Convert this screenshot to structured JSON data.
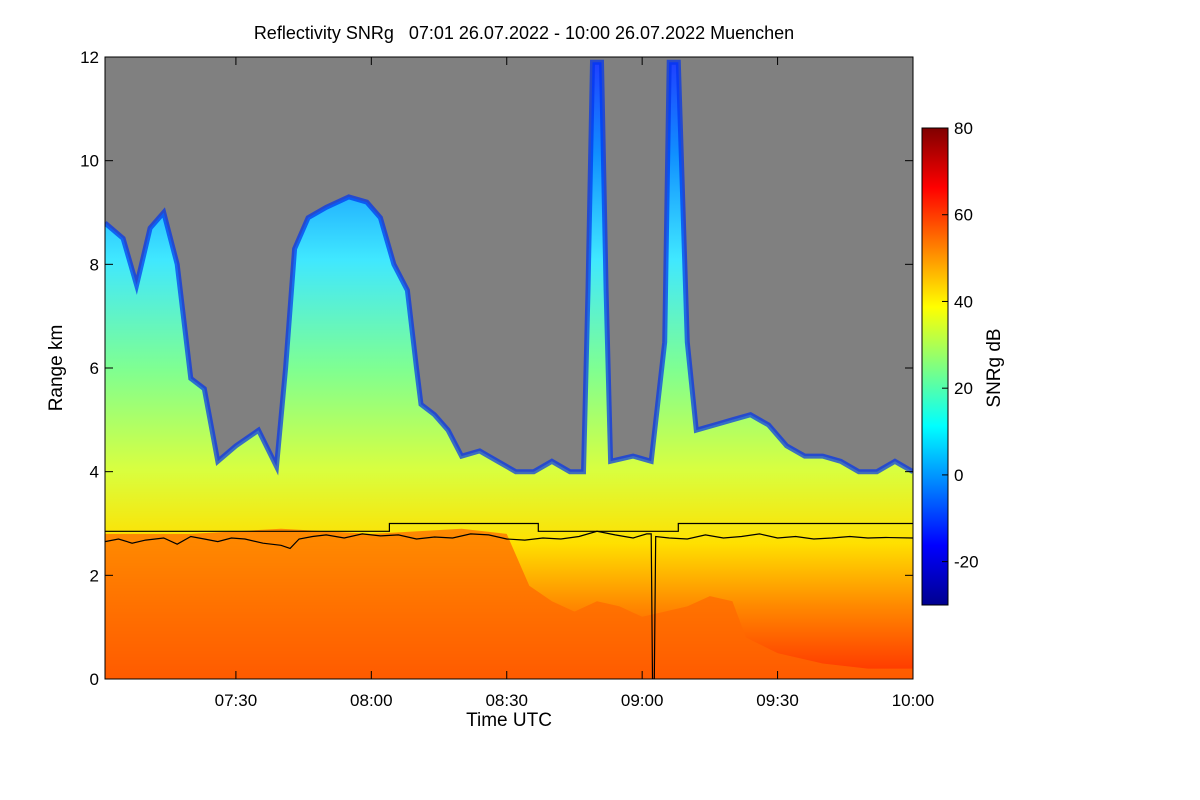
{
  "chart_data": {
    "type": "heatmap",
    "title": "Reflectivity SNRg   07:01 26.07.2022 - 10:00 26.07.2022 Muenchen",
    "xlabel": "Time UTC",
    "ylabel": "Range km",
    "colorbar_label": "SNRg dB",
    "x_range_minutes_utc": [
      421,
      600
    ],
    "y_range_km": [
      0,
      12
    ],
    "x_ticks": [
      {
        "minute": 450,
        "label": "07:30"
      },
      {
        "minute": 480,
        "label": "08:00"
      },
      {
        "minute": 510,
        "label": "08:30"
      },
      {
        "minute": 540,
        "label": "09:00"
      },
      {
        "minute": 570,
        "label": "09:30"
      },
      {
        "minute": 600,
        "label": "10:00"
      }
    ],
    "y_ticks": [
      {
        "value": 0,
        "label": "0"
      },
      {
        "value": 2,
        "label": "2"
      },
      {
        "value": 4,
        "label": "4"
      },
      {
        "value": 6,
        "label": "6"
      },
      {
        "value": 8,
        "label": "8"
      },
      {
        "value": 10,
        "label": "10"
      },
      {
        "value": 12,
        "label": "12"
      }
    ],
    "colorbar_range_db": [
      -30,
      80
    ],
    "colorbar_ticks": [
      {
        "value": -20,
        "label": "-20"
      },
      {
        "value": 0,
        "label": "0"
      },
      {
        "value": 20,
        "label": "20"
      },
      {
        "value": 40,
        "label": "40"
      },
      {
        "value": 60,
        "label": "60"
      },
      {
        "value": 80,
        "label": "80"
      }
    ],
    "no_signal_color": "#808080",
    "colormap": [
      "#00008f",
      "#0000ff",
      "#0080ff",
      "#00ffff",
      "#80ff80",
      "#ffff00",
      "#ff8000",
      "#ff0000",
      "#800000"
    ],
    "cloud_top_km": [
      [
        421,
        8.8
      ],
      [
        425,
        8.5
      ],
      [
        428,
        7.6
      ],
      [
        431,
        8.7
      ],
      [
        434,
        9.0
      ],
      [
        437,
        8.0
      ],
      [
        440,
        5.8
      ],
      [
        443,
        5.6
      ],
      [
        446,
        4.2
      ],
      [
        450,
        4.5
      ],
      [
        455,
        4.8
      ],
      [
        459,
        4.1
      ],
      [
        461,
        6.0
      ],
      [
        463,
        8.3
      ],
      [
        466,
        8.9
      ],
      [
        470,
        9.1
      ],
      [
        475,
        9.3
      ],
      [
        479,
        9.2
      ],
      [
        482,
        8.9
      ],
      [
        485,
        8.0
      ],
      [
        488,
        7.5
      ],
      [
        490,
        6.0
      ],
      [
        491,
        5.3
      ],
      [
        494,
        5.1
      ],
      [
        497,
        4.8
      ],
      [
        500,
        4.3
      ],
      [
        504,
        4.4
      ],
      [
        508,
        4.2
      ],
      [
        512,
        4.0
      ],
      [
        516,
        4.0
      ],
      [
        520,
        4.2
      ],
      [
        524,
        4.0
      ],
      [
        527,
        4.0
      ],
      [
        528,
        7.5
      ],
      [
        529,
        11.9
      ],
      [
        531,
        11.9
      ],
      [
        532,
        7.5
      ],
      [
        533,
        4.2
      ],
      [
        538,
        4.3
      ],
      [
        542,
        4.2
      ],
      [
        545,
        6.5
      ],
      [
        546,
        11.9
      ],
      [
        548,
        11.9
      ],
      [
        550,
        6.5
      ],
      [
        552,
        4.8
      ],
      [
        556,
        4.9
      ],
      [
        560,
        5.0
      ],
      [
        564,
        5.1
      ],
      [
        568,
        4.9
      ],
      [
        572,
        4.5
      ],
      [
        576,
        4.3
      ],
      [
        580,
        4.3
      ],
      [
        584,
        4.2
      ],
      [
        588,
        4.0
      ],
      [
        592,
        4.0
      ],
      [
        596,
        4.2
      ],
      [
        600,
        4.0
      ]
    ],
    "strong_echo_top_km": [
      [
        421,
        2.8
      ],
      [
        440,
        2.8
      ],
      [
        460,
        2.9
      ],
      [
        480,
        2.8
      ],
      [
        500,
        2.9
      ],
      [
        510,
        2.8
      ],
      [
        515,
        1.8
      ],
      [
        520,
        1.5
      ],
      [
        525,
        1.3
      ],
      [
        530,
        1.5
      ],
      [
        535,
        1.4
      ],
      [
        540,
        1.2
      ],
      [
        545,
        1.3
      ],
      [
        550,
        1.4
      ],
      [
        555,
        1.6
      ],
      [
        560,
        1.5
      ],
      [
        563,
        0.8
      ],
      [
        570,
        0.5
      ],
      [
        580,
        0.3
      ],
      [
        590,
        0.2
      ],
      [
        600,
        0.2
      ]
    ],
    "overlay_series": [
      {
        "points": [
          [
            421,
            2.65
          ],
          [
            424,
            2.7
          ],
          [
            427,
            2.62
          ],
          [
            430,
            2.68
          ],
          [
            434,
            2.72
          ],
          [
            437,
            2.6
          ],
          [
            440,
            2.75
          ],
          [
            443,
            2.7
          ],
          [
            446,
            2.65
          ],
          [
            449,
            2.72
          ],
          [
            452,
            2.7
          ],
          [
            456,
            2.62
          ],
          [
            460,
            2.58
          ],
          [
            462,
            2.52
          ],
          [
            464,
            2.7
          ],
          [
            467,
            2.75
          ],
          [
            470,
            2.78
          ],
          [
            474,
            2.72
          ],
          [
            478,
            2.8
          ],
          [
            482,
            2.76
          ],
          [
            486,
            2.78
          ],
          [
            490,
            2.7
          ],
          [
            494,
            2.74
          ],
          [
            498,
            2.72
          ],
          [
            502,
            2.8
          ],
          [
            506,
            2.78
          ],
          [
            510,
            2.7
          ],
          [
            514,
            2.68
          ],
          [
            518,
            2.72
          ],
          [
            522,
            2.7
          ],
          [
            526,
            2.75
          ],
          [
            530,
            2.85
          ],
          [
            534,
            2.78
          ],
          [
            538,
            2.72
          ],
          [
            541,
            2.8
          ],
          [
            542,
            2.8
          ],
          [
            542.3,
            0.0
          ],
          [
            542.7,
            0.0
          ],
          [
            543,
            2.75
          ],
          [
            546,
            2.72
          ],
          [
            550,
            2.7
          ],
          [
            554,
            2.78
          ],
          [
            558,
            2.72
          ],
          [
            562,
            2.75
          ],
          [
            566,
            2.8
          ],
          [
            570,
            2.72
          ],
          [
            574,
            2.75
          ],
          [
            578,
            2.7
          ],
          [
            582,
            2.72
          ],
          [
            586,
            2.75
          ],
          [
            590,
            2.72
          ],
          [
            594,
            2.73
          ],
          [
            600,
            2.72
          ]
        ]
      },
      {
        "points": [
          [
            421,
            2.85
          ],
          [
            484,
            2.85
          ],
          [
            484,
            3.0
          ],
          [
            517,
            3.0
          ],
          [
            517,
            2.85
          ],
          [
            548,
            2.85
          ],
          [
            548,
            3.0
          ],
          [
            600,
            3.0
          ]
        ]
      }
    ]
  }
}
